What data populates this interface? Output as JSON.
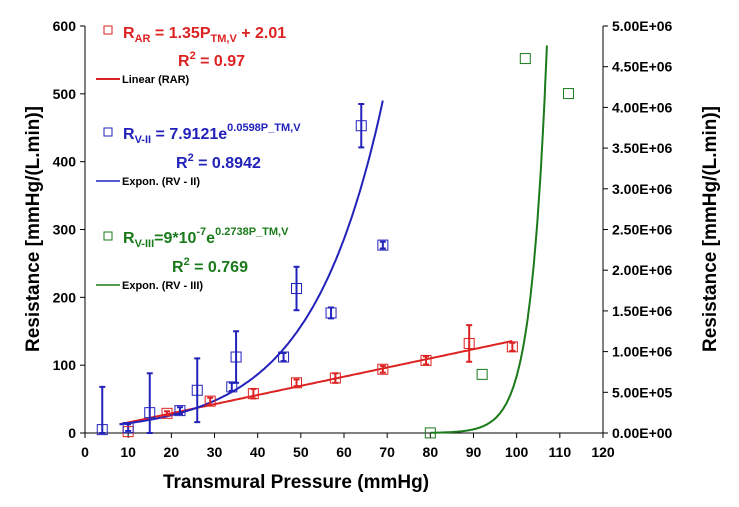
{
  "chart_data": {
    "type": "scatter",
    "xlabel": "Transmural Pressure (mmHg)",
    "ylabel": "Resistance [mmHg/(L.min)]",
    "y2label": "Resistance [mmHg/(L.min)]",
    "xlim": [
      0,
      120
    ],
    "ylim": [
      0,
      600
    ],
    "y2lim": [
      0,
      5000000
    ],
    "x_ticks": [
      "0",
      "10",
      "20",
      "30",
      "40",
      "50",
      "60",
      "70",
      "80",
      "90",
      "100",
      "110",
      "120"
    ],
    "y_ticks": [
      "0",
      "100",
      "200",
      "300",
      "400",
      "500",
      "600"
    ],
    "y2_ticks": [
      "0.00E+00",
      "5.00E+05",
      "1.00E+06",
      "1.50E+06",
      "2.00E+06",
      "2.50E+06",
      "3.00E+06",
      "3.50E+06",
      "4.00E+06",
      "4.50E+06",
      "5.00E+06"
    ],
    "grid": false,
    "series": [
      {
        "key": "rar",
        "axis": "left",
        "color": "#dd2222",
        "points": [
          {
            "x": 10,
            "y": 2
          },
          {
            "x": 19,
            "y": 29,
            "err": 3
          },
          {
            "x": 29,
            "y": 47,
            "err": 5
          },
          {
            "x": 39,
            "y": 58,
            "err": 7
          },
          {
            "x": 49,
            "y": 74,
            "err": 5
          },
          {
            "x": 58,
            "y": 81,
            "err": 7
          },
          {
            "x": 69,
            "y": 94,
            "err": 5
          },
          {
            "x": 79,
            "y": 107,
            "err": 6
          },
          {
            "x": 89,
            "y": 132,
            "err": 27
          },
          {
            "x": 99,
            "y": 127,
            "err": 6
          }
        ],
        "fit": {
          "kind": "linear",
          "slope": 1.35,
          "intercept": 2.01,
          "x_range": [
            8,
            99
          ]
        }
      },
      {
        "key": "rv2",
        "axis": "left",
        "color": "#2222bb",
        "points": [
          {
            "x": 4,
            "y": 5,
            "err": 63
          },
          {
            "x": 10,
            "y": 8,
            "err": 5
          },
          {
            "x": 15,
            "y": 30,
            "err": 58
          },
          {
            "x": 22,
            "y": 33,
            "err": 5
          },
          {
            "x": 26,
            "y": 63,
            "err": 47
          },
          {
            "x": 34,
            "y": 68,
            "err": 6
          },
          {
            "x": 35,
            "y": 112,
            "err": 38
          },
          {
            "x": 46,
            "y": 112,
            "err": 6
          },
          {
            "x": 49,
            "y": 213,
            "err": 32
          },
          {
            "x": 57,
            "y": 177,
            "err": 8
          },
          {
            "x": 64,
            "y": 453,
            "err": 32
          },
          {
            "x": 69,
            "y": 277,
            "err": 5
          }
        ],
        "fit": {
          "kind": "exp",
          "a": 7.9121,
          "b": 0.0598,
          "x_range": [
            8,
            69
          ]
        }
      },
      {
        "key": "rv3",
        "axis": "right",
        "color": "#1a7a1a",
        "points": [
          {
            "x": 80,
            "y": 1000
          },
          {
            "x": 92,
            "y": 720000
          },
          {
            "x": 102,
            "y": 4600000
          },
          {
            "x": 112,
            "y": 4170000
          }
        ],
        "fit": {
          "kind": "exp",
          "a": 9e-07,
          "b": 0.2738,
          "x_range": [
            80,
            107
          ]
        }
      }
    ]
  },
  "annotations": {
    "rar": {
      "eq_prefix": "R",
      "eq_sub": "AR",
      "eq_mid": " = 1.35P",
      "eq_sub2": "TM,V",
      "eq_tail": " + 2.01",
      "r2_label": "R",
      "r2_sup": "2",
      "r2_value": " = 0.97",
      "legend": "Linear (RAR)"
    },
    "rv2": {
      "eq_prefix": "R",
      "eq_sub": "V-II",
      "eq_mid": " = 7.9121e",
      "eq_sup": "0.0598P_TM,V",
      "r2_label": "R",
      "r2_sup": "2",
      "r2_value": " = 0.8942",
      "legend": "Expon. (RV - II)"
    },
    "rv3": {
      "eq_prefix": "R",
      "eq_sub": "V-III",
      "eq_mid": "=9*10",
      "eq_sup1": "-7",
      "eq_mid2": "e",
      "eq_sup2": "0.2738P_TM,V",
      "r2_label": "R",
      "r2_sup": "2",
      "r2_value": " = 0.769",
      "legend": "Expon. (RV - III)"
    }
  }
}
